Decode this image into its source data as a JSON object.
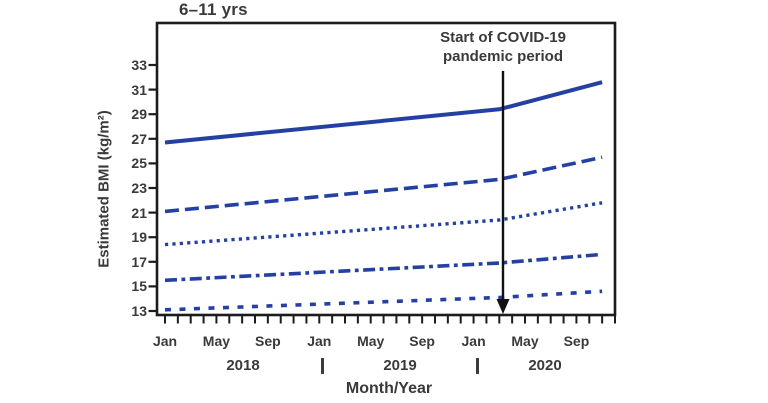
{
  "panel": {
    "title": "6–11 yrs"
  },
  "annotation": {
    "line1": "Start of COVID-19",
    "line2": "pandemic period"
  },
  "axes": {
    "y_title": "Estimated BMI (kg/m²)",
    "x_title": "Month/Year",
    "y_ticks": [
      33,
      31,
      29,
      27,
      25,
      23,
      21,
      19,
      17,
      15,
      13
    ],
    "month_tick_labels": [
      "Jan",
      "May",
      "Sep"
    ],
    "year_labels": [
      "2018",
      "2019",
      "2020"
    ],
    "year_separator": "|"
  },
  "chart_data": {
    "type": "line",
    "title": "6–11 yrs",
    "xlabel": "Month/Year",
    "ylabel": "Estimated BMI (kg/m²)",
    "ylim": [
      13,
      33
    ],
    "y_tick_step": 2,
    "x_range": [
      "Jan 2018",
      "Nov 2020"
    ],
    "x_tick_interval": "monthly",
    "x_axis_month_labels": [
      "Jan",
      "May",
      "Sep"
    ],
    "x_axis_years": [
      "2018",
      "2019",
      "2020"
    ],
    "grid": false,
    "legend": "none visible",
    "line_color": "#2440a3",
    "annotation": {
      "text": "Start of COVID-19 pandemic period",
      "marker": "vertical downward arrow",
      "x": "Mar 2020"
    },
    "series": [
      {
        "name": "line-1-solid",
        "style": "solid",
        "points": [
          {
            "month": "Jan 2018",
            "m": 0,
            "bmi": 26.7
          },
          {
            "month": "Mar 2020",
            "m": 26,
            "bmi": 29.4
          },
          {
            "month": "Nov 2020",
            "m": 34,
            "bmi": 31.6
          }
        ]
      },
      {
        "name": "line-2-long-dash",
        "style": "long-dash",
        "points": [
          {
            "month": "Jan 2018",
            "m": 0,
            "bmi": 21.1
          },
          {
            "month": "Mar 2020",
            "m": 26,
            "bmi": 23.7
          },
          {
            "month": "Nov 2020",
            "m": 34,
            "bmi": 25.5
          }
        ]
      },
      {
        "name": "line-3-dotted",
        "style": "dotted",
        "points": [
          {
            "month": "Jan 2018",
            "m": 0,
            "bmi": 18.4
          },
          {
            "month": "Mar 2020",
            "m": 26,
            "bmi": 20.4
          },
          {
            "month": "Nov 2020",
            "m": 34,
            "bmi": 21.8
          }
        ]
      },
      {
        "name": "line-4-dash-dot",
        "style": "dash-dot",
        "points": [
          {
            "month": "Jan 2018",
            "m": 0,
            "bmi": 15.5
          },
          {
            "month": "Mar 2020",
            "m": 26,
            "bmi": 16.9
          },
          {
            "month": "Nov 2020",
            "m": 34,
            "bmi": 17.6
          }
        ]
      },
      {
        "name": "line-5-short-dash",
        "style": "short-dash",
        "points": [
          {
            "month": "Jan 2018",
            "m": 0,
            "bmi": 13.1
          },
          {
            "month": "Mar 2020",
            "m": 26,
            "bmi": 14.1
          },
          {
            "month": "Nov 2020",
            "m": 34,
            "bmi": 14.6
          }
        ]
      }
    ]
  }
}
